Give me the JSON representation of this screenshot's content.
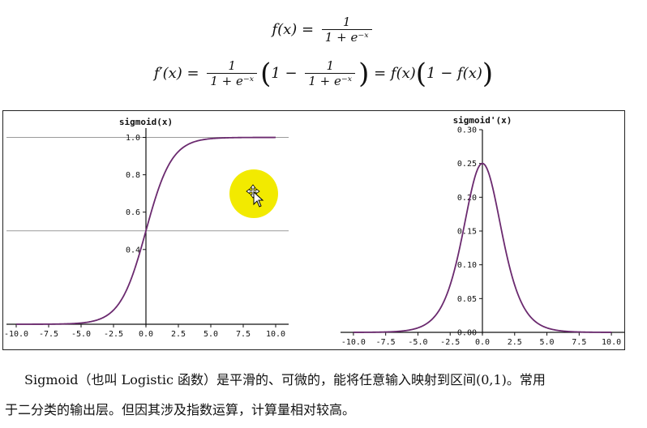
{
  "formulas": {
    "f_lhs": "f(x) = ",
    "f_num": "1",
    "f_den": "1 + e⁻ˣ",
    "fp_lhs": "f′(x) = ",
    "fp_num": "1",
    "fp_den": "1 + e⁻ˣ",
    "fp_one": "1 − ",
    "fp_num2": "1",
    "fp_den2": "1 + e⁻ˣ",
    "fp_rhs": " = f(x)",
    "fp_rhs2": "1 − f(x)"
  },
  "chart_data": [
    {
      "type": "line",
      "title": "sigmoid(x)",
      "function": "sigmoid",
      "xlim": [
        -11,
        11
      ],
      "ylim": [
        0,
        1.05
      ],
      "xticks": [
        "-10.0",
        "-7.5",
        "-5.0",
        "-2.5",
        "0.0",
        "2.5",
        "5.0",
        "7.5",
        "10.0"
      ],
      "yticks": [
        "0.4",
        "0.6",
        "0.8",
        "1.0"
      ],
      "reference_lines": [
        1.0,
        0.5
      ],
      "line_color": "#6b2a6f"
    },
    {
      "type": "line",
      "title": "sigmoid'(x)",
      "function": "sigmoid_derivative",
      "xlim": [
        -11,
        11
      ],
      "ylim": [
        0,
        0.3
      ],
      "xticks": [
        "-10.0",
        "-7.5",
        "-5.0",
        "-2.5",
        "0.0",
        "2.5",
        "5.0",
        "7.5",
        "10.0"
      ],
      "yticks": [
        "0.00",
        "0.05",
        "0.10",
        "0.15",
        "0.20",
        "0.25",
        "0.30"
      ],
      "line_color": "#6b2a6f"
    }
  ],
  "text": {
    "para1": "Sigmoid（也叫 Logistic 函数）是平滑的、可微的，能将任意输入映射到区间(0,1)。常用",
    "para2": "于二分类的输出层。但因其涉及指数运算，计算量相对较高。"
  },
  "cursor": {
    "highlight_color": "#f2ea00",
    "icon": "move-cursor-icon"
  }
}
